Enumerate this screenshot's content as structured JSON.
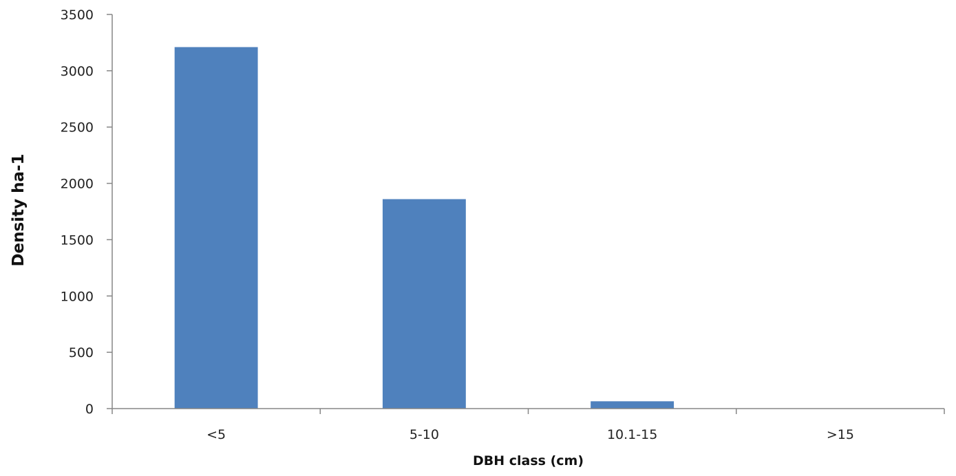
{
  "chart_data": {
    "type": "bar",
    "title": "",
    "xlabel": "DBH class  (cm)",
    "ylabel": "Density ha-1",
    "categories": [
      "<5",
      "5-10",
      "10.1-15",
      ">15"
    ],
    "values": [
      3210,
      1860,
      65,
      0
    ],
    "ylim": [
      0,
      3500
    ],
    "yticks": [
      0,
      500,
      1000,
      1500,
      2000,
      2500,
      3000,
      3500
    ],
    "grid": false,
    "legend": "none",
    "bar_color": "#4f81bd",
    "axis_color": "#868686"
  }
}
